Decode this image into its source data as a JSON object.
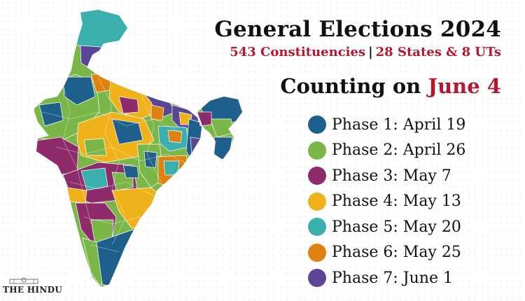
{
  "header": {
    "title": "General Elections 2024",
    "subtitle_left": "543 Constituencies",
    "subtitle_sep": "|",
    "subtitle_right": "28 States & 8 UTs",
    "counting_prefix": "Counting on",
    "counting_date": "June 4"
  },
  "colors": {
    "title": "#111111",
    "accent_red": "#b5172e",
    "map_border": "#ffffff"
  },
  "legend": [
    {
      "label": "Phase 1: April 19",
      "color": "#1f5f8b"
    },
    {
      "label": "Phase 2: April 26",
      "color": "#7ab648"
    },
    {
      "label": "Phase 3: May 7",
      "color": "#8e2c6b"
    },
    {
      "label": "Phase 4: May 13",
      "color": "#f0b21a"
    },
    {
      "label": "Phase 5: May 20",
      "color": "#3ab0ae"
    },
    {
      "label": "Phase 6: May 25",
      "color": "#e0820f"
    },
    {
      "label": "Phase 7: June 1",
      "color": "#5a4596"
    }
  ],
  "map": {
    "subject": "India constituency map colored by election phase"
  },
  "brand": {
    "name": "THE HINDU",
    "emblem_icon": "newspaper-emblem-icon"
  }
}
